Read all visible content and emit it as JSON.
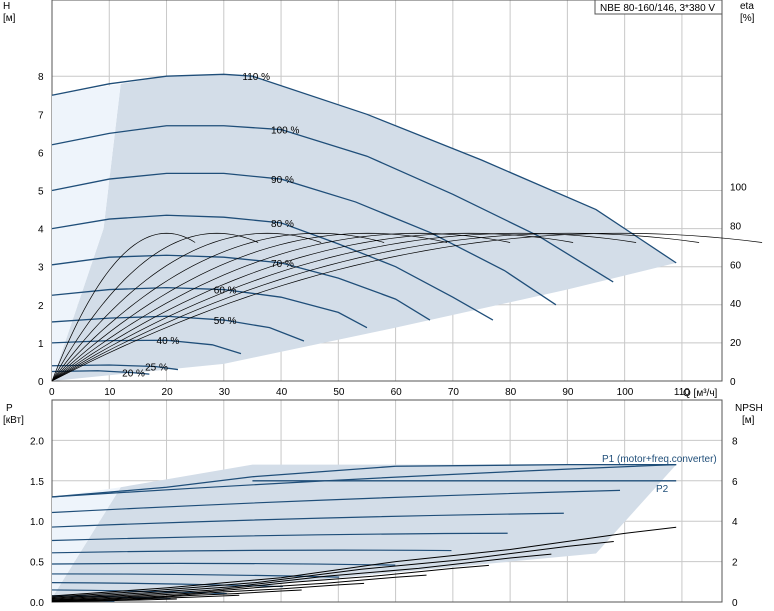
{
  "title_box": "NBE 80-160/146, 3*380 V",
  "chart_data": [
    {
      "type": "line",
      "title": "NBE 80-160/146, 3*380 V",
      "xlabel": "Q [м³/ч]",
      "ylabel_left": "H",
      "ylabel_left_unit": "[м]",
      "ylabel_right": "eta",
      "ylabel_right_unit": "[%]",
      "xlim": [
        0,
        117
      ],
      "ylim_left": [
        0,
        10
      ],
      "ylim_right": [
        0,
        196
      ],
      "x_ticks": [
        0,
        10,
        20,
        30,
        40,
        50,
        60,
        70,
        80,
        90,
        100,
        110
      ],
      "y_left_ticks": [
        0,
        1,
        2,
        3,
        4,
        5,
        6,
        7,
        8
      ],
      "y_right_ticks": [
        0,
        20,
        40,
        60,
        80,
        100
      ],
      "grid": true,
      "series": [
        {
          "name": "110 %",
          "head": [
            7.5,
            7.8,
            8.0,
            8.05,
            8.0,
            7.0,
            5.8,
            4.5,
            3.1
          ],
          "q": [
            0,
            10,
            20,
            30,
            35,
            55,
            75,
            95,
            109
          ]
        },
        {
          "name": "100 %",
          "head": [
            6.2,
            6.5,
            6.7,
            6.7,
            6.6,
            5.9,
            4.9,
            3.8,
            2.6
          ],
          "q": [
            0,
            10,
            20,
            30,
            40,
            55,
            70,
            85,
            98
          ]
        },
        {
          "name": "90 %",
          "head": [
            5.0,
            5.3,
            5.45,
            5.45,
            5.3,
            4.7,
            3.9,
            2.9,
            2.0
          ],
          "q": [
            0,
            10,
            20,
            30,
            40,
            53,
            66,
            79,
            88
          ]
        },
        {
          "name": "80 %",
          "head": [
            4.0,
            4.25,
            4.35,
            4.3,
            4.15,
            3.6,
            3.0,
            2.2,
            1.6
          ],
          "q": [
            0,
            10,
            20,
            30,
            40,
            50,
            60,
            70,
            77
          ]
        },
        {
          "name": "70 %",
          "head": [
            3.05,
            3.25,
            3.3,
            3.25,
            3.1,
            2.7,
            2.15,
            1.6
          ],
          "q": [
            0,
            10,
            20,
            30,
            40,
            50,
            60,
            66
          ]
        },
        {
          "name": "60 %",
          "head": [
            2.25,
            2.4,
            2.45,
            2.4,
            2.2,
            1.8,
            1.4
          ],
          "q": [
            0,
            10,
            20,
            30,
            40,
            50,
            55
          ]
        },
        {
          "name": "50 %",
          "head": [
            1.55,
            1.65,
            1.7,
            1.6,
            1.4,
            1.05
          ],
          "q": [
            0,
            10,
            20,
            30,
            38,
            44
          ]
        },
        {
          "name": "40 %",
          "head": [
            1.0,
            1.06,
            1.07,
            0.95,
            0.72
          ],
          "q": [
            0,
            10,
            20,
            28,
            33
          ]
        },
        {
          "name": "25 %",
          "head": [
            0.4,
            0.42,
            0.38,
            0.3
          ],
          "q": [
            0,
            10,
            18,
            22
          ]
        },
        {
          "name": "20 %",
          "head": [
            0.25,
            0.27,
            0.22,
            0.18
          ],
          "q": [
            0,
            8,
            14,
            17
          ]
        }
      ],
      "efficiency_peak_pct": 76
    },
    {
      "type": "line",
      "xlabel": "Q [м³/ч]",
      "ylabel_left": "P",
      "ylabel_left_unit": "[кВт]",
      "ylabel_right": "NPSH",
      "ylabel_right_unit": "[м]",
      "xlim": [
        0,
        117
      ],
      "ylim_left": [
        0,
        2.5
      ],
      "ylim_right": [
        0,
        10
      ],
      "y_left_ticks": [
        0.0,
        0.5,
        1.0,
        1.5,
        2.0
      ],
      "y_left_tick_labels": [
        "0.0",
        "0.5",
        "1.0",
        "1.5",
        "2.0"
      ],
      "y_right_ticks": [
        0,
        2,
        4,
        6,
        8
      ],
      "grid": true,
      "series": [
        {
          "name": "P1 (motor+freq.converter)",
          "p": [
            1.3,
            1.42,
            1.55,
            1.68,
            1.7,
            1.7
          ],
          "q": [
            0,
            20,
            35,
            60,
            90,
            109
          ]
        },
        {
          "name": "P2",
          "p": [
            1.5,
            1.5,
            1.5,
            1.5
          ],
          "q": [
            35,
            60,
            90,
            109
          ]
        }
      ],
      "npsh": {
        "q": [
          0,
          20,
          40,
          60,
          80,
          100,
          109
        ],
        "npsh": [
          0.3,
          0.7,
          1.2,
          2.0,
          2.6,
          3.4,
          3.7
        ]
      }
    }
  ],
  "labels": {
    "h_axis": "H",
    "h_unit": "[м]",
    "eta_axis": "eta",
    "eta_unit": "[%]",
    "q_axis": "Q [м³/ч]",
    "p_axis": "P",
    "p_unit": "[кВт]",
    "npsh_axis": "NPSH",
    "npsh_unit": "[м]",
    "p1": "P1 (motor+freq.converter)",
    "p2": "P2"
  },
  "colors": {
    "curve": "#1f4e79",
    "fill_dark": "#d3dde8",
    "fill_light": "#eef4fb",
    "grid": "#c8c8c8",
    "eff_curve": "#000000"
  }
}
